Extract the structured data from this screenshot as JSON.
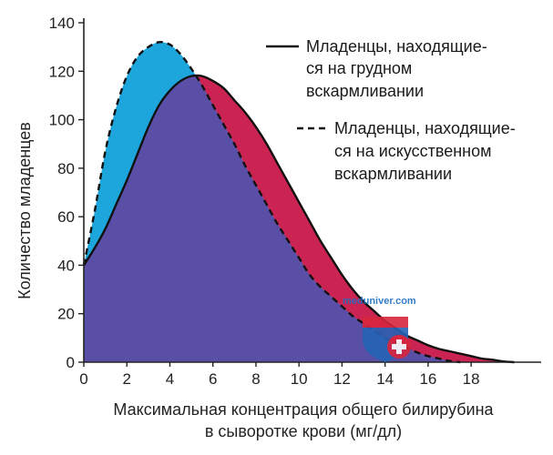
{
  "chart_data": {
    "type": "area",
    "xlabel": [
      "Максимальная концентрация общего билирубина",
      "в сыворотке крови (мг/дл)"
    ],
    "ylabel": "Количество младенцев",
    "xlim": [
      0,
      21
    ],
    "ylim": [
      0,
      140
    ],
    "x_ticks": [
      0,
      2,
      4,
      6,
      8,
      10,
      12,
      14,
      16,
      18
    ],
    "y_ticks": [
      0,
      20,
      40,
      60,
      80,
      100,
      120,
      140
    ],
    "series": [
      {
        "name": [
          "Младенцы, находящие-",
          "ся на грудном",
          "вскармливании"
        ],
        "line_style": "solid",
        "x": [
          0,
          0.5,
          1,
          1.5,
          2,
          2.5,
          3,
          3.5,
          4,
          4.5,
          5,
          5.5,
          6,
          6.5,
          7,
          7.5,
          8,
          8.5,
          9,
          9.5,
          10,
          10.5,
          11,
          11.5,
          12,
          12.5,
          13,
          13.5,
          14,
          14.5,
          15,
          15.5,
          16,
          16.5,
          17,
          17.5,
          18,
          18.5,
          19,
          19.5,
          20
        ],
        "values": [
          40,
          47,
          55,
          65,
          75,
          86,
          97,
          106,
          112,
          116,
          118,
          118,
          116,
          113,
          108,
          103,
          97,
          90,
          82,
          74,
          66,
          58,
          50,
          43,
          36,
          30,
          25,
          21,
          17,
          14,
          11,
          9,
          7,
          5.5,
          4.5,
          3.5,
          2.5,
          1.5,
          1,
          0.3,
          0
        ]
      },
      {
        "name": [
          "Младенцы, находящие-",
          "ся на искусственном",
          "вскармливании"
        ],
        "line_style": "dashed",
        "x": [
          0,
          0.5,
          1,
          1.5,
          2,
          2.5,
          3,
          3.5,
          4,
          4.5,
          5,
          5.5,
          6,
          6.5,
          7,
          7.5,
          8,
          8.5,
          9,
          9.5,
          10,
          10.5,
          11,
          11.5,
          12,
          12.5,
          13,
          13.5,
          14,
          14.5,
          15,
          15.5,
          16,
          16.5,
          17,
          17.5
        ],
        "values": [
          40,
          62,
          87,
          105,
          118,
          126,
          130,
          132,
          131,
          127,
          121,
          114,
          106,
          98,
          90,
          81,
          73,
          65,
          57,
          50,
          43,
          36,
          31,
          27,
          23,
          19,
          16,
          13,
          10,
          8,
          6,
          4,
          2.5,
          1.5,
          0.5,
          0
        ]
      }
    ],
    "colors": {
      "overlap": "#5a4fa6",
      "formula_only": "#1da6dc",
      "breast_only": "#cc2452",
      "lines": "#111111"
    }
  },
  "watermark": {
    "text": "meduniver.com",
    "colors": {
      "shield_top": "#d7263d",
      "shield_bottom": "#2463b5",
      "cross": "#ffffff"
    }
  }
}
